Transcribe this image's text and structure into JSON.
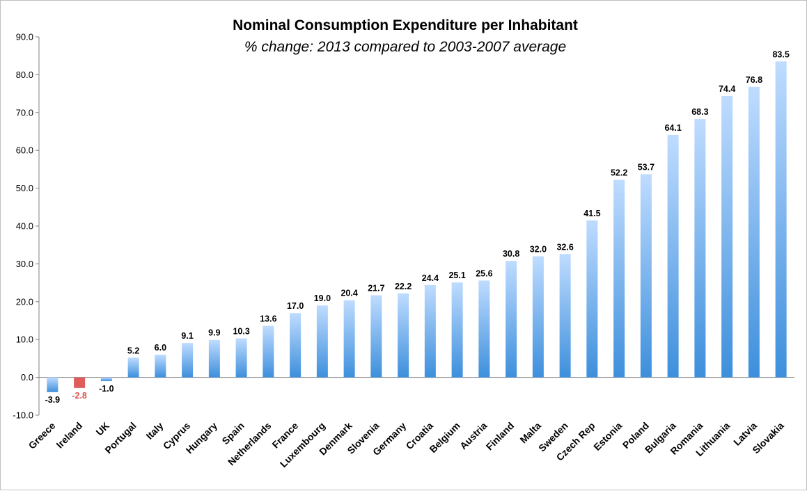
{
  "chart_data": {
    "type": "bar",
    "title": "Nominal Consumption Expenditure per Inhabitant",
    "subtitle": "% change: 2013 compared to 2003-2007 average",
    "xlabel": "",
    "ylabel": "",
    "ylim": [
      -10,
      90
    ],
    "ytick_step": 10,
    "ytick_labels": [
      "-10.0",
      "0.0",
      "10.0",
      "20.0",
      "30.0",
      "40.0",
      "50.0",
      "60.0",
      "70.0",
      "80.0",
      "90.0"
    ],
    "grid": false,
    "highlight_category": "Ireland",
    "categories": [
      "Greece",
      "Ireland",
      "UK",
      "Portugal",
      "Italy",
      "Cyprus",
      "Hungary",
      "Spain",
      "Netherlands",
      "France",
      "Luxembourg",
      "Denmark",
      "Slovenia",
      "Germany",
      "Croatia",
      "Belgium",
      "Austria",
      "Finland",
      "Malta",
      "Sweden",
      "Czech Rep",
      "Estonia",
      "Poland",
      "Bulgaria",
      "Romania",
      "Lithuania",
      "Latvia",
      "Slovakia"
    ],
    "values": [
      -3.9,
      -2.8,
      -1.0,
      5.2,
      6.0,
      9.1,
      9.9,
      10.3,
      13.6,
      17.0,
      19.0,
      20.4,
      21.7,
      22.2,
      24.4,
      25.1,
      25.6,
      30.8,
      32.0,
      32.6,
      41.5,
      52.2,
      53.7,
      64.1,
      68.3,
      74.4,
      76.8,
      83.5
    ],
    "value_labels": [
      "-3.9",
      "-2.8",
      "-1.0",
      "5.2",
      "6.0",
      "9.1",
      "9.9",
      "10.3",
      "13.6",
      "17.0",
      "19.0",
      "20.4",
      "21.7",
      "22.2",
      "24.4",
      "25.1",
      "25.6",
      "30.8",
      "32.0",
      "32.6",
      "41.5",
      "52.2",
      "53.7",
      "64.1",
      "68.3",
      "74.4",
      "76.8",
      "83.5"
    ],
    "colors": {
      "bar_top": "#bfdcff",
      "bar_bottom": "#3d8fdc",
      "highlight": "#e05c5c",
      "highlight_label": "#d9534f",
      "axis": "#808080"
    }
  }
}
